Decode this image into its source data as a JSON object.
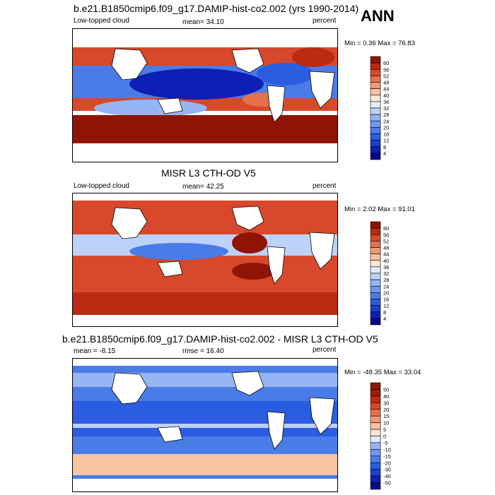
{
  "season": "ANN",
  "panels": [
    {
      "title": "b.e21.B1850cmip6.f09_g17.DAMIP-hist-co2.002 (yrs 1990-2014)",
      "left_label": "Low-topped cloud",
      "center_label": "mean=  34.10",
      "right_label": "percent",
      "minmax": "Min =   0.36 Max =  76.83"
    },
    {
      "title": "MISR L3 CTH-OD V5",
      "left_label": "Low-topped cloud",
      "center_label": "mean=  42.25",
      "right_label": "percent",
      "minmax": "Min =   2.02 Max =  91.01"
    },
    {
      "title": "b.e21.B1850cmip6.f09_g17.DAMIP-hist-co2.002 - MISR L3 CTH-OD V5",
      "left_label": "mean =  -8.15",
      "center_label": "rmse =  16.40",
      "right_label": "percent",
      "minmax": "Min = -48.35 Max =  33.04"
    }
  ],
  "chart_data": [
    {
      "type": "heatmap",
      "title": "b.e21.B1850cmip6.f09_g17.DAMIP-hist-co2.002 (yrs 1990-2014)",
      "variable": "Low-topped cloud",
      "units": "percent",
      "mean": 34.1,
      "min": 0.36,
      "max": 76.83,
      "colorbar": {
        "levels": [
          4,
          8,
          12,
          16,
          20,
          24,
          28,
          32,
          36,
          40,
          44,
          48,
          52,
          56,
          60
        ],
        "colors": [
          "#08088c",
          "#0d1fb5",
          "#1a3fd0",
          "#2a5de0",
          "#4a7ce8",
          "#6f99ee",
          "#96b6f3",
          "#bdd2f8",
          "#e3ecfc",
          "#fde6d8",
          "#f8c3a2",
          "#f29b75",
          "#e8704c",
          "#d8482a",
          "#bb2a12",
          "#8f1405"
        ]
      }
    },
    {
      "type": "heatmap",
      "title": "MISR L3 CTH-OD V5",
      "variable": "Low-topped cloud",
      "units": "percent",
      "mean": 42.25,
      "min": 2.02,
      "max": 91.01,
      "colorbar": {
        "levels": [
          4,
          8,
          12,
          16,
          20,
          24,
          28,
          32,
          36,
          40,
          44,
          48,
          52,
          56,
          60
        ],
        "colors": [
          "#08088c",
          "#0d1fb5",
          "#1a3fd0",
          "#2a5de0",
          "#4a7ce8",
          "#6f99ee",
          "#96b6f3",
          "#bdd2f8",
          "#e3ecfc",
          "#fde6d8",
          "#f8c3a2",
          "#f29b75",
          "#e8704c",
          "#d8482a",
          "#bb2a12",
          "#8f1405"
        ]
      }
    },
    {
      "type": "heatmap",
      "title": "b.e21.B1850cmip6.f09_g17.DAMIP-hist-co2.002 - MISR L3 CTH-OD V5",
      "units": "percent",
      "mean": -8.15,
      "rmse": 16.4,
      "min": -48.35,
      "max": 33.04,
      "colorbar": {
        "levels": [
          -50,
          -40,
          -30,
          -20,
          -15,
          -10,
          -5,
          0,
          5,
          10,
          15,
          20,
          30,
          40,
          50
        ],
        "colors": [
          "#08088c",
          "#0d1fb5",
          "#1a3fd0",
          "#2a5de0",
          "#4a7ce8",
          "#6f99ee",
          "#96b6f3",
          "#e3ecfc",
          "#fde6d8",
          "#f8c3a2",
          "#f29b75",
          "#e8704c",
          "#d8482a",
          "#bb2a12",
          "#a01c08",
          "#8f1405"
        ]
      }
    }
  ]
}
